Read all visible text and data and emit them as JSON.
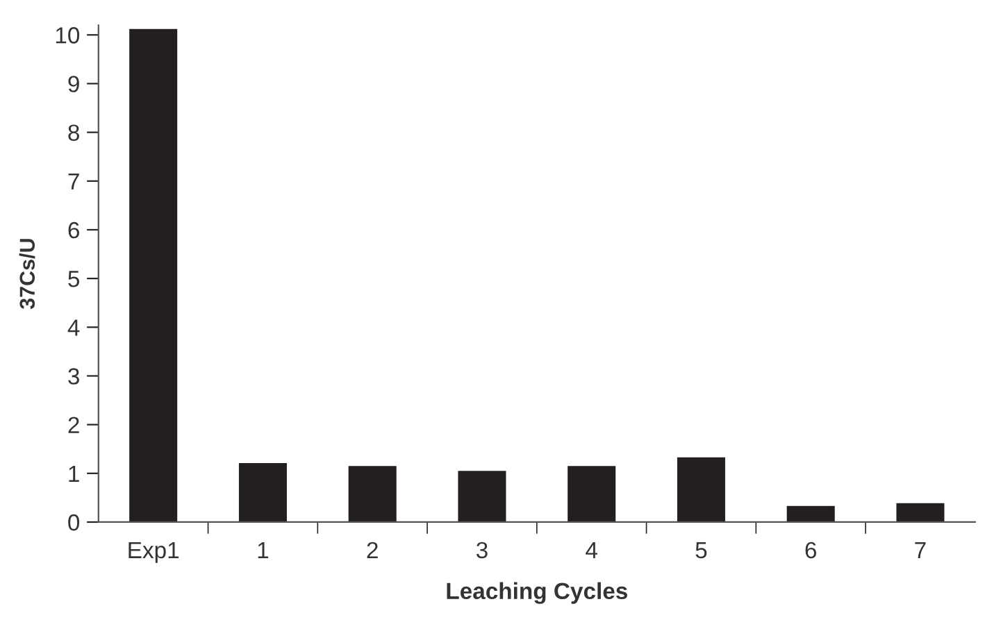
{
  "chart_data": {
    "type": "bar",
    "xlabel": "Leaching Cycles",
    "ylabel": "37Cs/U",
    "categories": [
      "Exp1",
      "1",
      "2",
      "3",
      "4",
      "5",
      "6",
      "7"
    ],
    "values": [
      10.1,
      1.19,
      1.13,
      1.03,
      1.13,
      1.31,
      0.31,
      0.37
    ],
    "color": "#231f20",
    "ylim": [
      0,
      10.2
    ],
    "yticks": [
      0,
      1,
      2,
      3,
      4,
      5,
      6,
      7,
      8,
      9,
      10
    ],
    "grid": false
  }
}
